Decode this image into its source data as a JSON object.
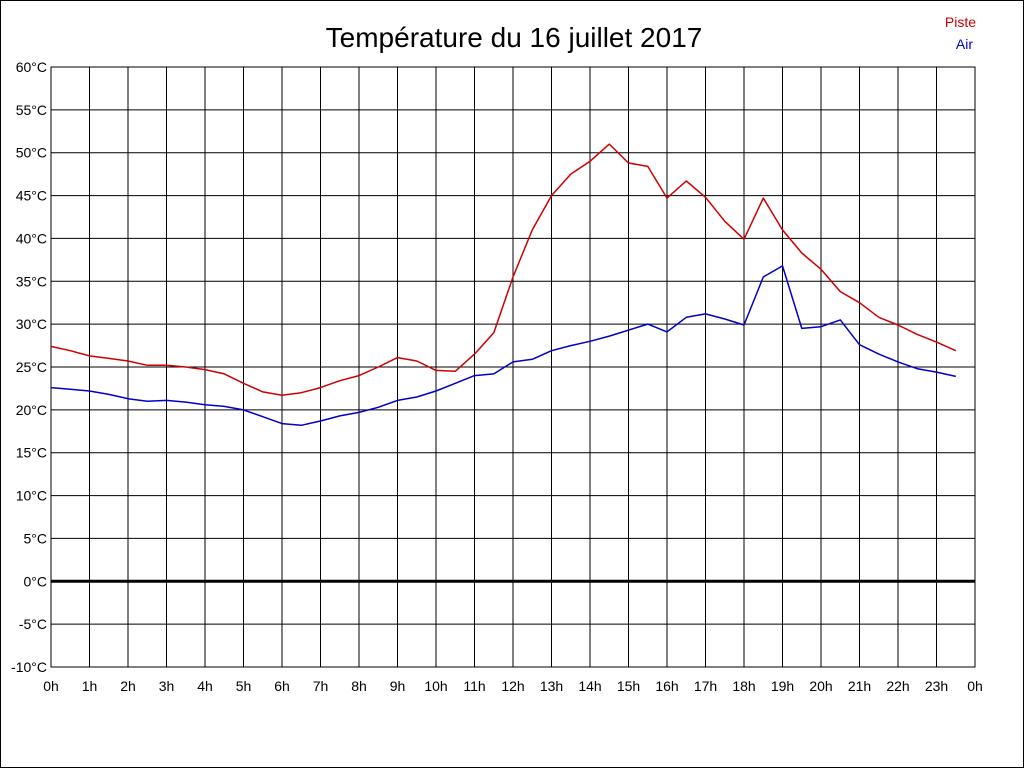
{
  "chart_data": {
    "type": "line",
    "title": "Température du 16 juillet 2017",
    "xlabel": "",
    "ylabel": "",
    "xlim": [
      0,
      24
    ],
    "ylim": [
      -10,
      60
    ],
    "grid": true,
    "legend_position": "top-right",
    "x_tick_labels": [
      "0h",
      "1h",
      "2h",
      "3h",
      "4h",
      "5h",
      "6h",
      "7h",
      "8h",
      "9h",
      "10h",
      "11h",
      "12h",
      "13h",
      "14h",
      "15h",
      "16h",
      "17h",
      "18h",
      "19h",
      "20h",
      "21h",
      "22h",
      "23h",
      "0h"
    ],
    "y_ticks": [
      -10,
      -5,
      0,
      5,
      10,
      15,
      20,
      25,
      30,
      35,
      40,
      45,
      50,
      55,
      60
    ],
    "y_tick_labels": [
      "-10°C",
      "-5°C",
      "0°C",
      "5°C",
      "10°C",
      "15°C",
      "20°C",
      "25°C",
      "30°C",
      "35°C",
      "40°C",
      "45°C",
      "50°C",
      "55°C",
      "60°C"
    ],
    "x": [
      0,
      0.5,
      1,
      1.5,
      2,
      2.5,
      3,
      3.5,
      4,
      4.5,
      5,
      5.5,
      6,
      6.5,
      7,
      7.5,
      8,
      8.5,
      9,
      9.5,
      10,
      10.5,
      11,
      11.5,
      12,
      12.5,
      13,
      13.5,
      14,
      14.5,
      15,
      15.5,
      16,
      16.5,
      17,
      17.5,
      18,
      18.5,
      19,
      19.5,
      20,
      20.5,
      21,
      21.5,
      22,
      22.5,
      23,
      23.5
    ],
    "series": [
      {
        "name": "Piste",
        "color": "#cc0000",
        "values": [
          27.4,
          26.9,
          26.3,
          26.0,
          25.7,
          25.2,
          25.2,
          25.0,
          24.7,
          24.2,
          23.1,
          22.1,
          21.7,
          22.0,
          22.6,
          23.4,
          24.0,
          25.0,
          26.1,
          25.7,
          24.6,
          24.5,
          26.5,
          29.0,
          35.5,
          41.0,
          45.0,
          47.5,
          49.0,
          51.0,
          48.8,
          48.4,
          44.7,
          46.7,
          44.8,
          42.0,
          39.9,
          44.7,
          41.0,
          38.3,
          36.4,
          33.8,
          32.5,
          30.8,
          29.9,
          28.8,
          27.9,
          26.9
        ]
      },
      {
        "name": "Air",
        "color": "#0000cc",
        "values": [
          22.6,
          22.4,
          22.2,
          21.8,
          21.3,
          21.0,
          21.1,
          20.9,
          20.6,
          20.4,
          20.0,
          19.2,
          18.4,
          18.2,
          18.7,
          19.3,
          19.7,
          20.3,
          21.1,
          21.5,
          22.2,
          23.1,
          24.0,
          24.2,
          25.6,
          25.9,
          26.9,
          27.5,
          28.0,
          28.6,
          29.3,
          30.0,
          29.1,
          30.8,
          31.2,
          30.6,
          29.9,
          35.5,
          36.8,
          29.5,
          29.7,
          30.5,
          27.6,
          26.5,
          25.6,
          24.8,
          24.4,
          23.9
        ]
      }
    ]
  }
}
